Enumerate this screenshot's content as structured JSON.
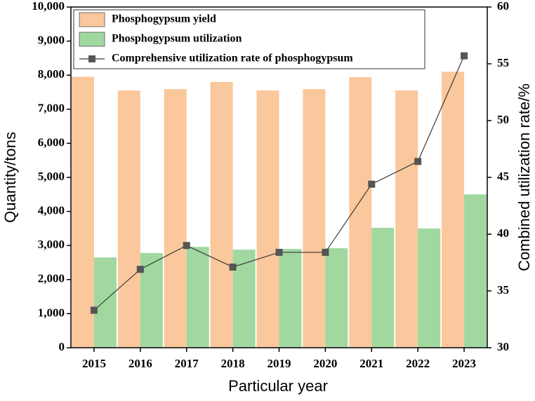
{
  "chart_data": {
    "type": "bar",
    "x_label": "Particular year",
    "y_label": "Quantity/tons",
    "y2_label": "Combined utilization rate/%",
    "categories": [
      "2015",
      "2016",
      "2017",
      "2018",
      "2019",
      "2020",
      "2021",
      "2022",
      "2023"
    ],
    "series": [
      {
        "name": "Phosphogypsum yield",
        "type": "bar",
        "color": "#fbc79c",
        "values": [
          7950,
          7550,
          7590,
          7800,
          7550,
          7590,
          7940,
          7550,
          8100
        ]
      },
      {
        "name": "Phosphogypsum utilization",
        "type": "bar",
        "color": "#a0d8a0",
        "values": [
          2650,
          2780,
          2960,
          2880,
          2900,
          2920,
          3520,
          3500,
          4500
        ]
      },
      {
        "name": "Comprehensive utilization rate of phosphogypsum",
        "type": "line",
        "axis": "y2",
        "color": "#3a3a3a",
        "values": [
          33.3,
          36.9,
          39.0,
          37.1,
          38.4,
          38.4,
          44.4,
          46.4,
          55.7
        ]
      }
    ],
    "ylim": [
      0,
      10000
    ],
    "yticks": [
      0,
      {
        "value": 1000,
        "label": "1,000"
      },
      {
        "value": 2000,
        "label": "2,000"
      },
      {
        "value": 3000,
        "label": "3,000"
      },
      {
        "value": 4000,
        "label": "4,000"
      },
      {
        "value": 5000,
        "label": "5,000"
      },
      {
        "value": 6000,
        "label": "6,000"
      },
      {
        "value": 7000,
        "label": "7,000"
      },
      {
        "value": 8000,
        "label": "8,000"
      },
      {
        "value": 9000,
        "label": "9,000"
      },
      {
        "value": 10000,
        "label": "10,000"
      }
    ],
    "y2lim": [
      30,
      60
    ],
    "y2ticks": [
      30,
      35,
      40,
      45,
      50,
      55,
      60
    ],
    "grid": false,
    "legend": "upper-left"
  }
}
